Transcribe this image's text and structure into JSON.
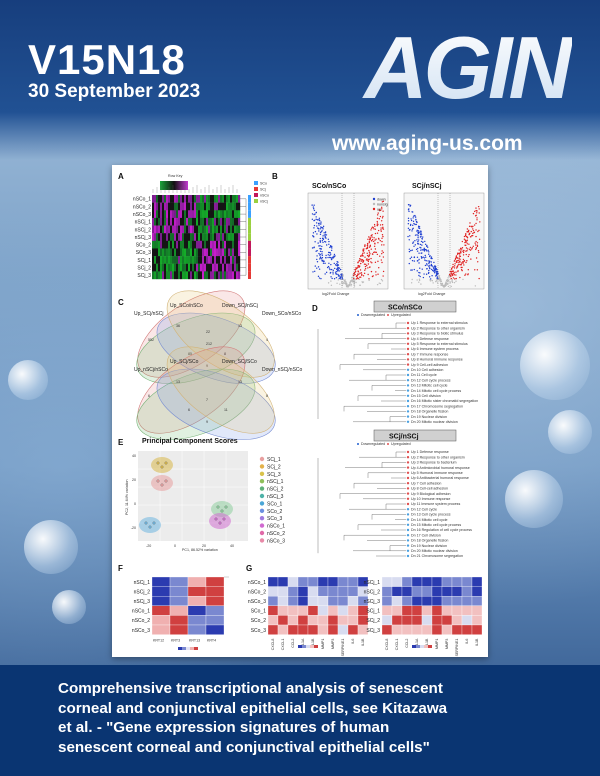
{
  "cover": {
    "volume": "V15N18",
    "date": "30 September 2023",
    "journal_logo": "AGING",
    "url": "www.aging-us.com"
  },
  "caption_lines": [
    "Comprehensive transcriptional analysis of senescent",
    "corneal and conjunctival epithelial cells, see Kitazawa",
    "et al. - \"Gene expression signatures of human",
    "senescent corneal and conjunctival epithelial cells\""
  ],
  "figure": {
    "panel_labels": [
      "A",
      "B",
      "C",
      "D",
      "E",
      "F",
      "G"
    ],
    "heatmap_rows": [
      "nSCo_1",
      "nSCo_2",
      "nSCo_3",
      "nSCj_1",
      "nSCj_2",
      "nSCj_3",
      "SCo_2",
      "SCo_3",
      "SCj_1",
      "SCj_2",
      "SCj_3"
    ],
    "heatmap_legend": [
      "SCo",
      "SCj",
      "nSCo",
      "nSCj"
    ],
    "heatmap_key_title": "Row Key",
    "volcano_titles": [
      "SCo/nSCo",
      "SCj/nSCj"
    ],
    "volcano_xlabel": "log2Fold Change",
    "volcano_legend": [
      "down",
      "nonsig",
      "up"
    ],
    "venn_top_labels": [
      "Up_SCj/nSCj",
      "Up_SCo/nSCo",
      "Down_SCj/nSCj",
      "Down_SCo/nSCo"
    ],
    "venn_bottom_labels": [
      "Up_nSCj/nSCo",
      "Up_SCj/SCo",
      "Down_SCj/SCo",
      "Down_nSCj/nSCo"
    ],
    "venn_top_counts": [
      "552",
      "36",
      "13",
      "4",
      "212",
      "85",
      "8",
      "9",
      "22"
    ],
    "venn_bottom_counts": [
      "6",
      "13",
      "13",
      "8",
      "7",
      "6",
      "11",
      "9"
    ],
    "go_titles": [
      "SCo/nSCo",
      "SCj/nSCj"
    ],
    "go_legend": [
      "Downregulated",
      "Upregulated"
    ],
    "go_terms_top": [
      "Up 1 Response to external stimulus",
      "Up 2 Response to other organism",
      "Up 3 Response to biotic stimulus",
      "Up 4 Defense response",
      "Up 5 Response to external stimulus",
      "Up 6 Immune system process",
      "Up 7 Immune response",
      "Up 8 Humoral immune response",
      "Up 9 Cell-cell adhesion",
      "Dn 10 Cell adhesion",
      "Dn 11 Cell cycle",
      "Dn 12 Cell cycle process",
      "Dn 13 Mitotic cell cycle",
      "Dn 14 Mitotic cell cycle process",
      "Dn 15 Cell division",
      "Dn 16 Mitotic sister chromatid segregation",
      "Dn 17 Chromosome segregation",
      "Dn 18 Organelle fission",
      "Dn 19 Nuclear division",
      "Dn 20 Mitotic nuclear division"
    ],
    "go_terms_bottom": [
      "Up 1 Defense response",
      "Up 2 Response to other organism",
      "Up 3 Response to bacterium",
      "Up 4 Antimicrobial humoral response",
      "Up 5 Humoral immune response",
      "Up 6 Antibacterial humoral response",
      "Up 7 Cell adhesion",
      "Up 8 Cell-cell adhesion",
      "Up 9 Biological adhesion",
      "Up 10 Immune response",
      "Up 11 Immune system process",
      "Dn 12 Cell cycle",
      "Dn 13 Cell cycle process",
      "Dn 14 Mitotic cell cycle",
      "Dn 15 Mitotic cell cycle process",
      "Dn 16 Regulation of cell cycle process",
      "Dn 17 Cell division",
      "Dn 18 Organelle fission",
      "Dn 19 Nuclear division",
      "Dn 20 Mitotic nuclear division",
      "Dn 21 Chromosome segregation"
    ],
    "pca_title": "Principal Component Scores",
    "pca_xlabel": "PC1, 86.52% variation",
    "pca_ylabel": "PC2, 11.64% variation",
    "pca_legend": [
      "SCj_1",
      "SCj_2",
      "SCj_3",
      "nSCj_1",
      "nSCj_2",
      "nSCj_3",
      "SCo_1",
      "SCo_2",
      "SCo_3",
      "nSCo_1",
      "nSCo_2",
      "nSCo_3"
    ],
    "pca_legend_colors": [
      "#e8a0a0",
      "#e3b14a",
      "#d9c24a",
      "#8fbf5a",
      "#5fb17a",
      "#4eb2a8",
      "#4aa6d6",
      "#6b8fe0",
      "#a07be0",
      "#d06ad0",
      "#e06aa8",
      "#e88aa8"
    ],
    "pca_xticks": [
      "-20",
      "0",
      "20",
      "40"
    ],
    "pca_yticks": [
      "40",
      "20",
      "0",
      "-20"
    ],
    "krt_rows": [
      "nSCj_1",
      "nSCj_2",
      "nSCj_3",
      "nSCo_1",
      "nSCo_2",
      "nSCo_3"
    ],
    "krt_cols": [
      "KRT12",
      "KRT3",
      "KRT13",
      "KRT4"
    ],
    "sasp_rows_left": [
      "nSCo_1",
      "nSCo_2",
      "nSCo_3",
      "SCo_1",
      "SCo_2",
      "SCo_3"
    ],
    "sasp_rows_right": [
      "nSCj_1",
      "nSCj_2",
      "nSCj_3",
      "SCj_1",
      "SCj_2",
      "SCj_3"
    ],
    "sasp_cols": [
      "CXCL8",
      "CXCL1",
      "CCL2",
      "IL1A",
      "IL1B",
      "MMP1",
      "MMP3",
      "SERPINE1",
      "IL6",
      "IL1B"
    ]
  }
}
